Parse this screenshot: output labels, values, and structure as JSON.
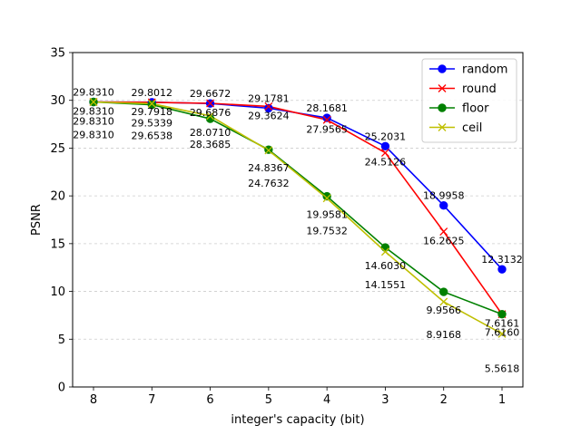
{
  "chart_data": {
    "type": "line",
    "xlabel": "integer's capacity (bit)",
    "ylabel": "PSNR",
    "x": [
      8,
      7,
      6,
      5,
      4,
      3,
      2,
      1
    ],
    "ylim": [
      0,
      35
    ],
    "yticks": [
      0,
      5,
      10,
      15,
      20,
      25,
      30,
      35
    ],
    "grid": "horizontal dashed",
    "legend_position": "top-right",
    "series": [
      {
        "name": "random",
        "color": "#0000ff",
        "marker": "circle",
        "values": [
          29.831,
          29.8012,
          29.6672,
          29.1781,
          28.1681,
          25.2031,
          18.9958,
          12.3132
        ],
        "labels": [
          "29.8310",
          "29.8012",
          "29.6672",
          "29.1781",
          "28.1681",
          "25.2031",
          "18.9958",
          "12.3132"
        ]
      },
      {
        "name": "round",
        "color": "#ff0000",
        "marker": "x",
        "values": [
          29.831,
          29.7918,
          29.6876,
          29.3624,
          27.9565,
          24.5126,
          16.2625,
          7.6161
        ],
        "labels": [
          "29.8310",
          "29.7918",
          "29.6876",
          "29.3624",
          "27.9565",
          "24.5126",
          "16.2625",
          "7.6161"
        ]
      },
      {
        "name": "floor",
        "color": "#008000",
        "marker": "circle",
        "values": [
          29.831,
          29.5339,
          28.071,
          24.8367,
          19.9581,
          14.603,
          9.9566,
          7.616
        ],
        "labels": [
          "29.8310",
          "29.5339",
          "28.0710",
          "24.8367",
          "19.9581",
          "14.6030",
          "9.9566",
          "7.6160"
        ]
      },
      {
        "name": "ceil",
        "color": "#bfbf00",
        "marker": "x",
        "values": [
          29.831,
          29.6538,
          28.3685,
          24.7632,
          19.7532,
          14.1551,
          8.9168,
          5.5618
        ],
        "labels": [
          "29.8310",
          "29.6538",
          "28.3685",
          "24.7632",
          "19.7532",
          "14.1551",
          "8.9168",
          "5.5618"
        ]
      }
    ]
  }
}
